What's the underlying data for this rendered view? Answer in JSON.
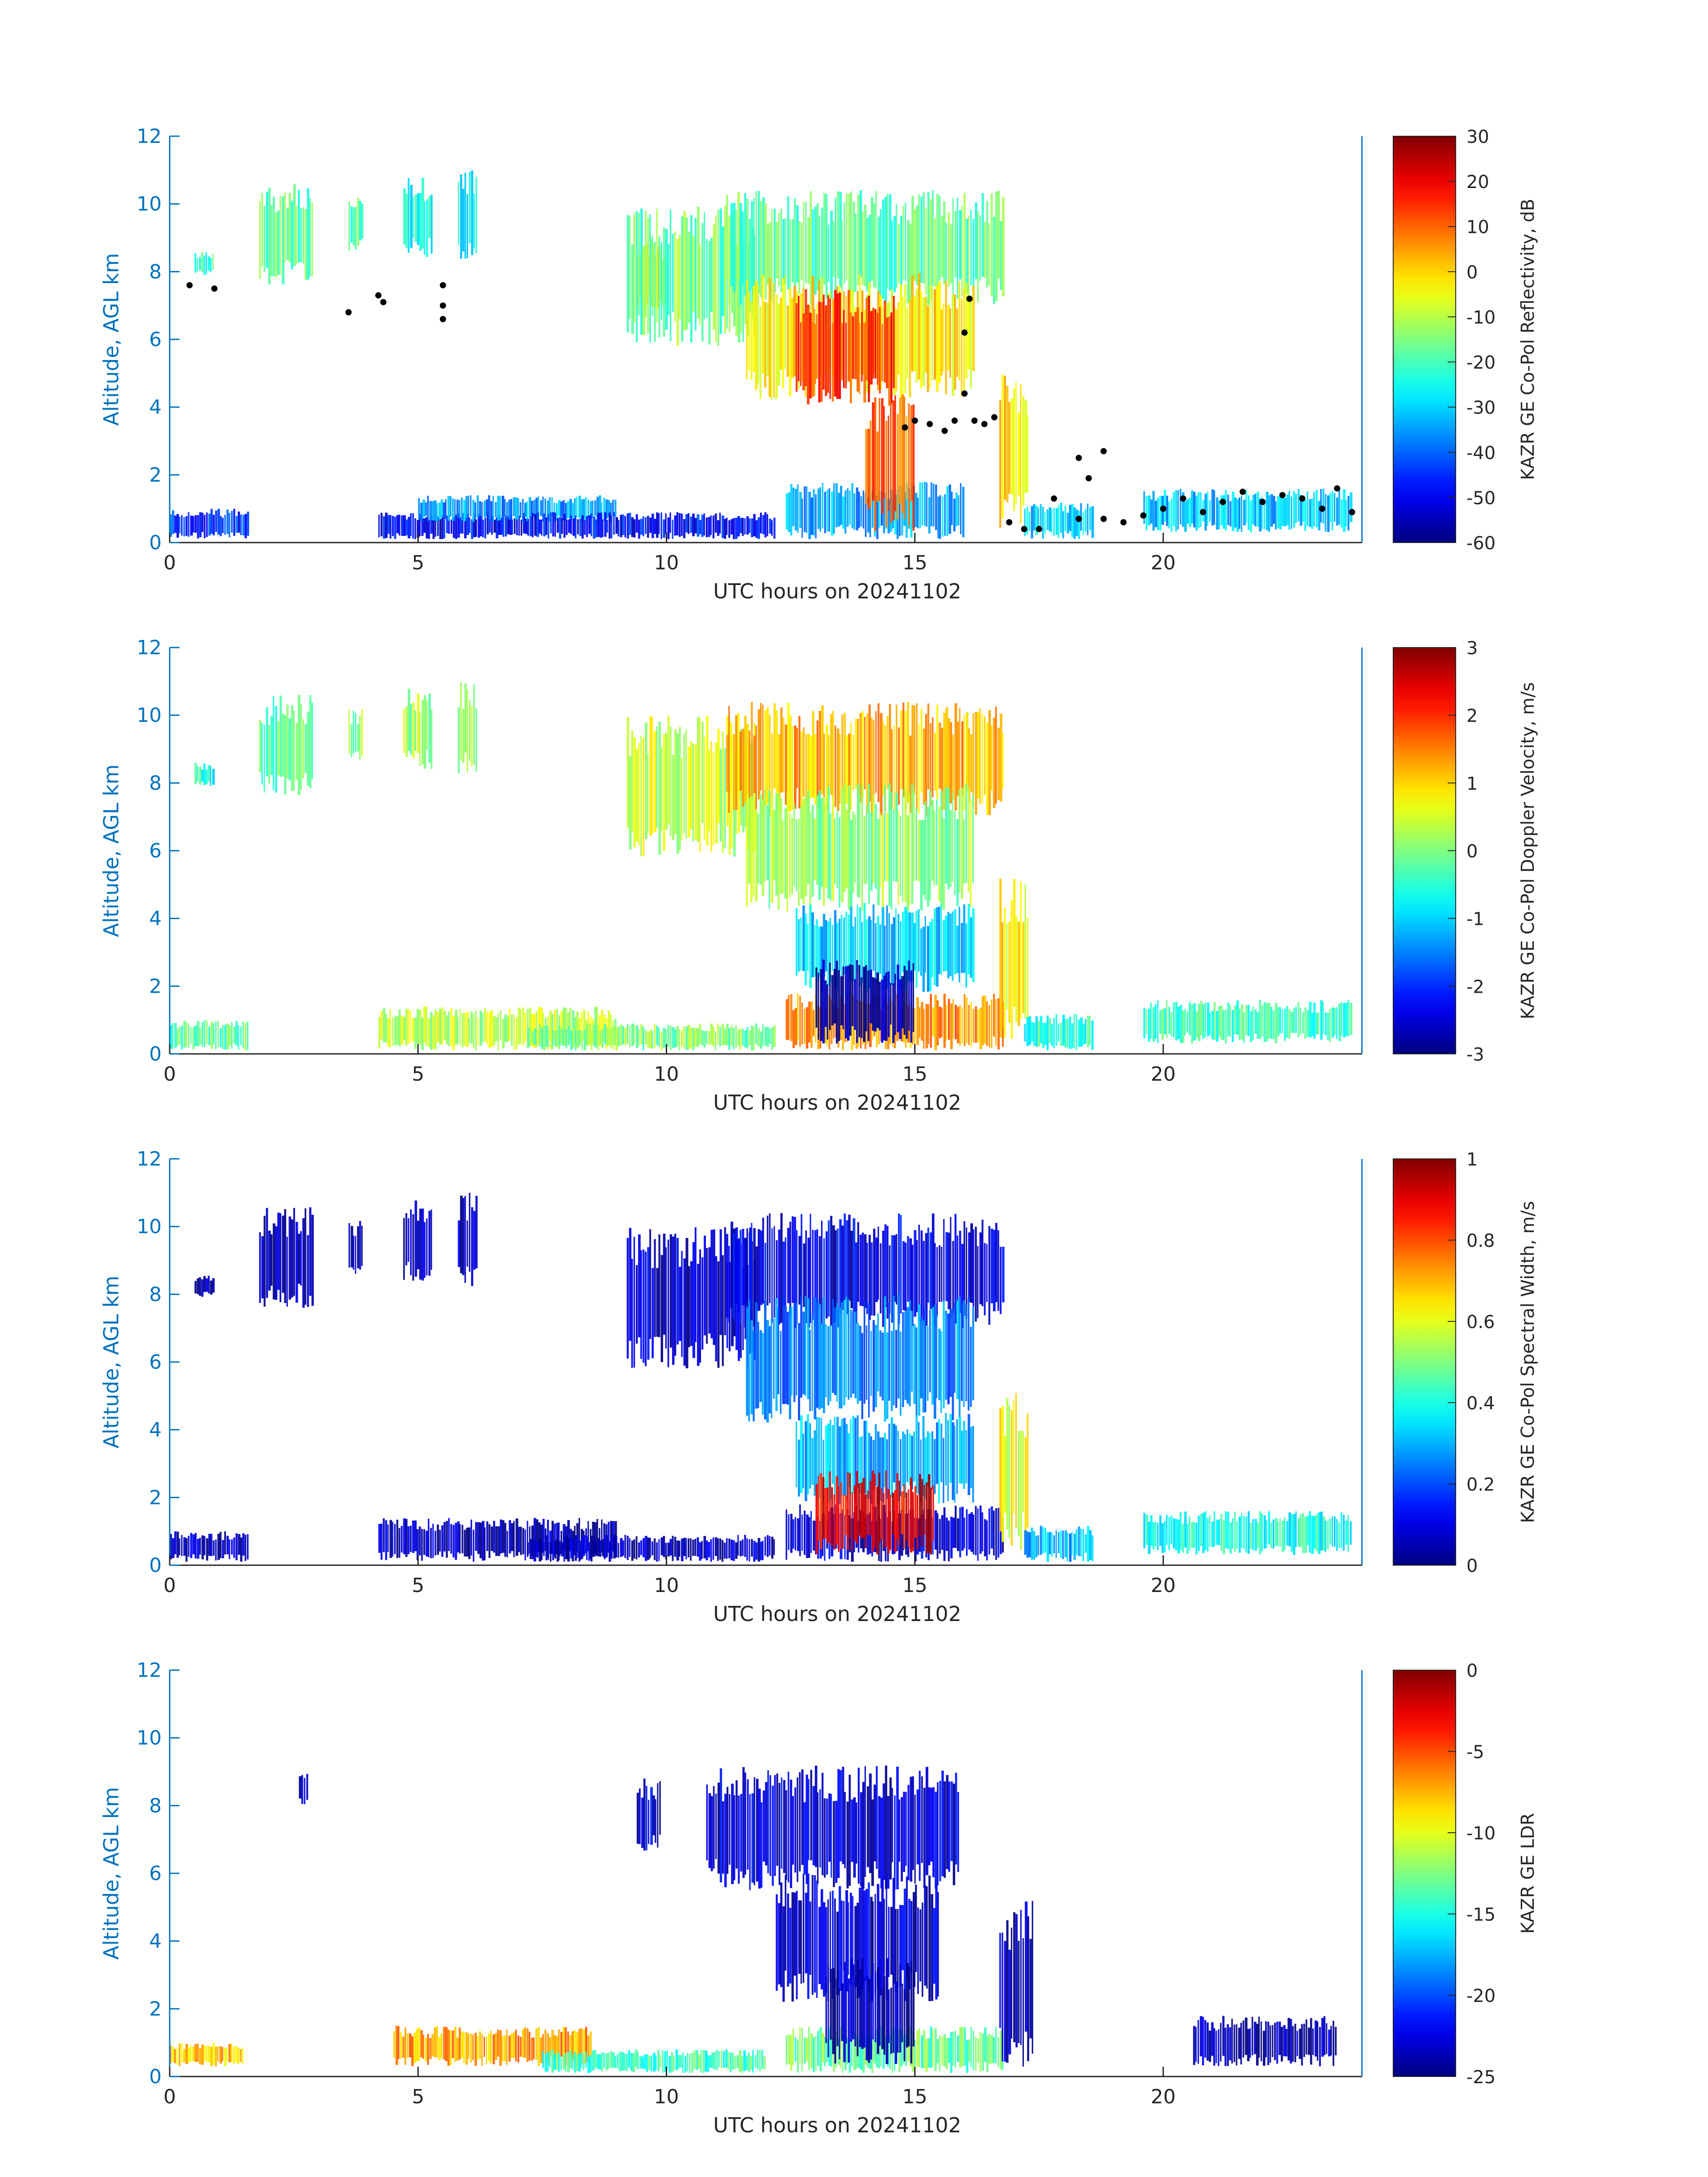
{
  "figure": {
    "xlabel": "UTC hours on 20241102",
    "ylabel": "Altitude, AGL km"
  },
  "chart_data": [
    {
      "type": "heatmap",
      "title": "",
      "xlabel": "UTC hours on 20241102",
      "ylabel": "Altitude, AGL km",
      "xlim": [
        0,
        24
      ],
      "ylim": [
        0,
        12
      ],
      "xticks": [
        "0",
        "5",
        "10",
        "15",
        "20"
      ],
      "yticks": [
        "0",
        "2",
        "4",
        "6",
        "8",
        "10",
        "12"
      ],
      "colorbar": {
        "label": "KAZR GE Co-Pol Reflectivity, dB",
        "range": [
          -60,
          30
        ],
        "ticks": [
          "30",
          "20",
          "10",
          "0",
          "-10",
          "-20",
          "-30",
          "-40",
          "-50",
          "-60"
        ]
      },
      "overlay": {
        "marker_color": "#000000",
        "points": [
          [
            0.4,
            7.6
          ],
          [
            0.9,
            7.5
          ],
          [
            3.6,
            6.8
          ],
          [
            4.2,
            7.3
          ],
          [
            4.3,
            7.1
          ],
          [
            5.5,
            7.0
          ],
          [
            5.5,
            6.6
          ],
          [
            5.5,
            7.6
          ],
          [
            14.8,
            3.4
          ],
          [
            15.0,
            3.6
          ],
          [
            15.3,
            3.5
          ],
          [
            15.6,
            3.3
          ],
          [
            15.8,
            3.6
          ],
          [
            16.0,
            4.4
          ],
          [
            16.0,
            6.2
          ],
          [
            16.1,
            7.2
          ],
          [
            16.2,
            3.6
          ],
          [
            16.4,
            3.5
          ],
          [
            16.6,
            3.7
          ],
          [
            16.9,
            0.6
          ],
          [
            17.2,
            0.4
          ],
          [
            17.5,
            0.4
          ],
          [
            17.8,
            1.3
          ],
          [
            18.3,
            2.5
          ],
          [
            18.5,
            1.9
          ],
          [
            18.8,
            2.7
          ],
          [
            18.3,
            0.7
          ],
          [
            18.8,
            0.7
          ],
          [
            19.2,
            0.6
          ],
          [
            19.6,
            0.8
          ],
          [
            20.0,
            1.0
          ],
          [
            20.4,
            1.3
          ],
          [
            20.8,
            0.9
          ],
          [
            21.2,
            1.2
          ],
          [
            21.6,
            1.5
          ],
          [
            22.0,
            1.2
          ],
          [
            22.4,
            1.4
          ],
          [
            22.8,
            1.3
          ],
          [
            23.2,
            1.0
          ],
          [
            23.5,
            1.6
          ],
          [
            23.8,
            0.9
          ]
        ]
      },
      "regions": [
        {
          "x0": 0.0,
          "x1": 1.6,
          "y0": 0.1,
          "y1": 1.0,
          "value": -45
        },
        {
          "x0": 0.5,
          "x1": 0.9,
          "y0": 7.9,
          "y1": 8.6,
          "value": -22
        },
        {
          "x0": 1.8,
          "x1": 2.9,
          "y0": 7.6,
          "y1": 10.6,
          "value": -18
        },
        {
          "x0": 3.6,
          "x1": 3.9,
          "y0": 8.6,
          "y1": 10.2,
          "value": -20
        },
        {
          "x0": 4.7,
          "x1": 5.3,
          "y0": 8.4,
          "y1": 10.8,
          "value": -24
        },
        {
          "x0": 5.8,
          "x1": 6.2,
          "y0": 8.2,
          "y1": 11.0,
          "value": -26
        },
        {
          "x0": 4.2,
          "x1": 7.2,
          "y0": 0.1,
          "y1": 0.9,
          "value": -50
        },
        {
          "x0": 5.0,
          "x1": 9.0,
          "y0": 0.6,
          "y1": 1.4,
          "value": -35
        },
        {
          "x0": 7.2,
          "x1": 12.2,
          "y0": 0.1,
          "y1": 0.9,
          "value": -48
        },
        {
          "x0": 9.4,
          "x1": 10.0,
          "y0": 6.8,
          "y1": 9.0,
          "value": -5
        },
        {
          "x0": 9.2,
          "x1": 11.8,
          "y0": 5.8,
          "y1": 10.0,
          "value": -16
        },
        {
          "x0": 11.2,
          "x1": 16.8,
          "y0": 7.0,
          "y1": 10.4,
          "value": -18
        },
        {
          "x0": 11.6,
          "x1": 16.2,
          "y0": 4.2,
          "y1": 8.0,
          "value": -2
        },
        {
          "x0": 12.6,
          "x1": 14.6,
          "y0": 4.0,
          "y1": 7.5,
          "value": 14
        },
        {
          "x0": 12.4,
          "x1": 16.0,
          "y0": 0.1,
          "y1": 1.8,
          "value": -34
        },
        {
          "x0": 14.0,
          "x1": 15.0,
          "y0": 0.3,
          "y1": 4.5,
          "value": 10
        },
        {
          "x0": 16.7,
          "x1": 17.3,
          "y0": 0.4,
          "y1": 5.2,
          "value": -2
        },
        {
          "x0": 17.2,
          "x1": 18.6,
          "y0": 0.1,
          "y1": 1.2,
          "value": -30
        },
        {
          "x0": 19.6,
          "x1": 23.8,
          "y0": 0.3,
          "y1": 1.6,
          "value": -32
        }
      ]
    },
    {
      "type": "heatmap",
      "title": "",
      "xlabel": "UTC hours on 20241102",
      "ylabel": "Altitude, AGL km",
      "xlim": [
        0,
        24
      ],
      "ylim": [
        0,
        12
      ],
      "xticks": [
        "0",
        "5",
        "10",
        "15",
        "20"
      ],
      "yticks": [
        "0",
        "2",
        "4",
        "6",
        "8",
        "10",
        "12"
      ],
      "colorbar": {
        "label": "KAZR GE Co-Pol Doppler Velocity, m/s",
        "range": [
          -3,
          3
        ],
        "ticks": [
          "3",
          "2",
          "1",
          "0",
          "-1",
          "-2",
          "-3"
        ]
      },
      "regions": [
        {
          "x0": 0.0,
          "x1": 1.6,
          "y0": 0.1,
          "y1": 1.0,
          "value": -0.2
        },
        {
          "x0": 0.5,
          "x1": 0.9,
          "y0": 7.9,
          "y1": 8.6,
          "value": -0.6
        },
        {
          "x0": 1.8,
          "x1": 2.9,
          "y0": 7.6,
          "y1": 10.6,
          "value": -0.2
        },
        {
          "x0": 3.6,
          "x1": 3.9,
          "y0": 8.6,
          "y1": 10.2,
          "value": 0.1
        },
        {
          "x0": 4.7,
          "x1": 5.3,
          "y0": 8.4,
          "y1": 10.8,
          "value": 0.2
        },
        {
          "x0": 5.8,
          "x1": 6.2,
          "y0": 8.2,
          "y1": 11.0,
          "value": 0.3
        },
        {
          "x0": 4.2,
          "x1": 9.0,
          "y0": 0.1,
          "y1": 1.4,
          "value": 0.4
        },
        {
          "x0": 7.2,
          "x1": 12.2,
          "y0": 0.1,
          "y1": 0.9,
          "value": 0.0
        },
        {
          "x0": 9.2,
          "x1": 11.8,
          "y0": 5.8,
          "y1": 10.0,
          "value": 0.4
        },
        {
          "x0": 11.2,
          "x1": 16.8,
          "y0": 7.0,
          "y1": 10.4,
          "value": 1.2
        },
        {
          "x0": 11.6,
          "x1": 16.2,
          "y0": 4.2,
          "y1": 8.0,
          "value": 0.1
        },
        {
          "x0": 12.6,
          "x1": 16.2,
          "y0": 1.8,
          "y1": 4.5,
          "value": -1.0
        },
        {
          "x0": 12.4,
          "x1": 16.8,
          "y0": 0.1,
          "y1": 1.8,
          "value": 1.4
        },
        {
          "x0": 13.0,
          "x1": 15.0,
          "y0": 0.3,
          "y1": 2.8,
          "value": -2.8
        },
        {
          "x0": 16.7,
          "x1": 17.3,
          "y0": 0.4,
          "y1": 5.2,
          "value": 0.8
        },
        {
          "x0": 17.2,
          "x1": 18.6,
          "y0": 0.1,
          "y1": 1.2,
          "value": -0.5
        },
        {
          "x0": 19.6,
          "x1": 23.8,
          "y0": 0.3,
          "y1": 1.6,
          "value": -0.4
        }
      ]
    },
    {
      "type": "heatmap",
      "title": "",
      "xlabel": "UTC hours on 20241102",
      "ylabel": "Altitude, AGL km",
      "xlim": [
        0,
        24
      ],
      "ylim": [
        0,
        12
      ],
      "xticks": [
        "0",
        "5",
        "10",
        "15",
        "20"
      ],
      "yticks": [
        "0",
        "2",
        "4",
        "6",
        "8",
        "10",
        "12"
      ],
      "colorbar": {
        "label": "KAZR GE Co-Pol Spectral Width, m/s",
        "range": [
          0,
          1
        ],
        "ticks": [
          "1",
          "0.8",
          "0.6",
          "0.4",
          "0.2",
          "0"
        ]
      },
      "regions": [
        {
          "x0": 0.0,
          "x1": 1.6,
          "y0": 0.1,
          "y1": 1.0,
          "value": 0.05
        },
        {
          "x0": 0.5,
          "x1": 0.9,
          "y0": 7.9,
          "y1": 8.6,
          "value": 0.06
        },
        {
          "x0": 1.8,
          "x1": 2.9,
          "y0": 7.6,
          "y1": 10.6,
          "value": 0.04
        },
        {
          "x0": 3.6,
          "x1": 3.9,
          "y0": 8.6,
          "y1": 10.2,
          "value": 0.05
        },
        {
          "x0": 4.7,
          "x1": 5.3,
          "y0": 8.4,
          "y1": 10.8,
          "value": 0.05
        },
        {
          "x0": 5.8,
          "x1": 6.2,
          "y0": 8.2,
          "y1": 11.0,
          "value": 0.05
        },
        {
          "x0": 4.2,
          "x1": 9.0,
          "y0": 0.1,
          "y1": 1.4,
          "value": 0.05
        },
        {
          "x0": 7.2,
          "x1": 12.2,
          "y0": 0.1,
          "y1": 0.9,
          "value": 0.06
        },
        {
          "x0": 9.2,
          "x1": 11.8,
          "y0": 5.8,
          "y1": 10.0,
          "value": 0.07
        },
        {
          "x0": 11.2,
          "x1": 16.8,
          "y0": 7.0,
          "y1": 10.4,
          "value": 0.1
        },
        {
          "x0": 11.6,
          "x1": 16.2,
          "y0": 4.2,
          "y1": 8.0,
          "value": 0.25
        },
        {
          "x0": 12.6,
          "x1": 16.2,
          "y0": 1.8,
          "y1": 4.5,
          "value": 0.3
        },
        {
          "x0": 12.4,
          "x1": 16.8,
          "y0": 0.1,
          "y1": 1.8,
          "value": 0.08
        },
        {
          "x0": 13.0,
          "x1": 15.4,
          "y0": 0.3,
          "y1": 2.8,
          "value": 0.9
        },
        {
          "x0": 16.7,
          "x1": 17.3,
          "y0": 0.4,
          "y1": 5.2,
          "value": 0.6
        },
        {
          "x0": 17.2,
          "x1": 18.6,
          "y0": 0.1,
          "y1": 1.2,
          "value": 0.3
        },
        {
          "x0": 19.6,
          "x1": 23.8,
          "y0": 0.3,
          "y1": 1.6,
          "value": 0.4
        }
      ]
    },
    {
      "type": "heatmap",
      "title": "",
      "xlabel": "UTC hours on 20241102",
      "ylabel": "Altitude, AGL km",
      "xlim": [
        0,
        24
      ],
      "ylim": [
        0,
        12
      ],
      "xticks": [
        "0",
        "5",
        "10",
        "15",
        "20"
      ],
      "yticks": [
        "0",
        "2",
        "4",
        "6",
        "8",
        "10",
        "12"
      ],
      "colorbar": {
        "label": "KAZR GE LDR",
        "range": [
          -25,
          0
        ],
        "ticks": [
          "0",
          "-5",
          "-10",
          "-15",
          "-20",
          "-25"
        ]
      },
      "regions": [
        {
          "x0": 0.0,
          "x1": 1.5,
          "y0": 0.3,
          "y1": 1.0,
          "value": -8
        },
        {
          "x0": 2.6,
          "x1": 2.8,
          "y0": 8.0,
          "y1": 9.0,
          "value": -23
        },
        {
          "x0": 4.5,
          "x1": 8.5,
          "y0": 0.3,
          "y1": 1.5,
          "value": -7
        },
        {
          "x0": 7.5,
          "x1": 12.0,
          "y0": 0.1,
          "y1": 0.8,
          "value": -14
        },
        {
          "x0": 9.4,
          "x1": 9.9,
          "y0": 6.6,
          "y1": 8.8,
          "value": -23
        },
        {
          "x0": 10.8,
          "x1": 15.9,
          "y0": 5.5,
          "y1": 9.2,
          "value": -23
        },
        {
          "x0": 12.2,
          "x1": 15.5,
          "y0": 2.2,
          "y1": 6.0,
          "value": -23
        },
        {
          "x0": 12.4,
          "x1": 16.8,
          "y0": 0.1,
          "y1": 1.5,
          "value": -13
        },
        {
          "x0": 13.2,
          "x1": 15.0,
          "y0": 0.3,
          "y1": 3.5,
          "value": -24
        },
        {
          "x0": 16.7,
          "x1": 17.4,
          "y0": 0.2,
          "y1": 5.2,
          "value": -24
        },
        {
          "x0": 20.6,
          "x1": 23.5,
          "y0": 0.3,
          "y1": 1.8,
          "value": -24
        }
      ]
    }
  ]
}
